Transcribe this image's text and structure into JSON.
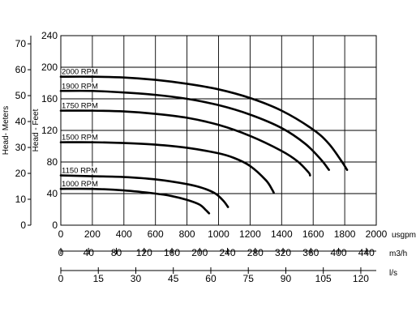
{
  "chart_data": {
    "type": "line",
    "title": "",
    "x": {
      "unit_label": "usgpm",
      "range": [
        0,
        2000
      ],
      "ticks": [
        0,
        200,
        400,
        600,
        800,
        1000,
        1200,
        1400,
        1600,
        1800,
        2000
      ]
    },
    "y_feet": {
      "label": "Head - Feet",
      "range": [
        0,
        240
      ],
      "ticks": [
        0,
        40,
        80,
        120,
        160,
        200,
        240
      ]
    },
    "y_meters": {
      "label": "Head- Meters",
      "range": [
        0,
        73.15
      ],
      "ticks": [
        0,
        10,
        20,
        30,
        40,
        50,
        60,
        70
      ]
    },
    "secondary_x_axes": [
      {
        "unit_label": "m3/h",
        "ticks": [
          "0",
          "40",
          "80",
          "120",
          "160",
          "200",
          "240",
          "280",
          "320",
          "360",
          "400",
          "440"
        ],
        "scale_usgpm_per_unit": 4.4029
      },
      {
        "unit_label": "l/s",
        "ticks": [
          "0",
          "15",
          "30",
          "45",
          "60",
          "75",
          "90",
          "105",
          "120"
        ],
        "scale_usgpm_per_unit": 15.8503
      }
    ],
    "grid": true,
    "series": [
      {
        "name": "2000 RPM",
        "points": [
          [
            0,
            188
          ],
          [
            200,
            188
          ],
          [
            400,
            187
          ],
          [
            600,
            184
          ],
          [
            800,
            179
          ],
          [
            1000,
            172
          ],
          [
            1200,
            161
          ],
          [
            1400,
            145
          ],
          [
            1600,
            121
          ],
          [
            1700,
            103
          ],
          [
            1780,
            81
          ],
          [
            1815,
            70
          ]
        ]
      },
      {
        "name": "1900 RPM",
        "points": [
          [
            0,
            170
          ],
          [
            200,
            170
          ],
          [
            400,
            168
          ],
          [
            600,
            165
          ],
          [
            800,
            160
          ],
          [
            1000,
            152
          ],
          [
            1200,
            140
          ],
          [
            1400,
            123
          ],
          [
            1550,
            103
          ],
          [
            1650,
            83
          ],
          [
            1700,
            70
          ]
        ]
      },
      {
        "name": "1750 RPM",
        "points": [
          [
            0,
            145
          ],
          [
            200,
            145
          ],
          [
            400,
            144
          ],
          [
            600,
            141
          ],
          [
            800,
            136
          ],
          [
            1000,
            127
          ],
          [
            1200,
            113
          ],
          [
            1400,
            94
          ],
          [
            1500,
            81
          ],
          [
            1570,
            67
          ],
          [
            1580,
            63
          ]
        ]
      },
      {
        "name": "1500 RPM",
        "points": [
          [
            0,
            105
          ],
          [
            200,
            105
          ],
          [
            400,
            104
          ],
          [
            600,
            102
          ],
          [
            800,
            98
          ],
          [
            1000,
            91
          ],
          [
            1100,
            85
          ],
          [
            1200,
            75
          ],
          [
            1300,
            57
          ],
          [
            1340,
            45
          ],
          [
            1350,
            41
          ]
        ]
      },
      {
        "name": "1150 RPM",
        "points": [
          [
            0,
            63
          ],
          [
            200,
            62
          ],
          [
            400,
            61
          ],
          [
            600,
            58
          ],
          [
            800,
            52
          ],
          [
            900,
            47
          ],
          [
            980,
            40
          ],
          [
            1030,
            31
          ],
          [
            1060,
            23
          ]
        ]
      },
      {
        "name": "1000 RPM",
        "points": [
          [
            0,
            46
          ],
          [
            200,
            46
          ],
          [
            400,
            44
          ],
          [
            600,
            40
          ],
          [
            700,
            37
          ],
          [
            800,
            32
          ],
          [
            880,
            26
          ],
          [
            920,
            19
          ],
          [
            940,
            15
          ]
        ]
      }
    ]
  }
}
